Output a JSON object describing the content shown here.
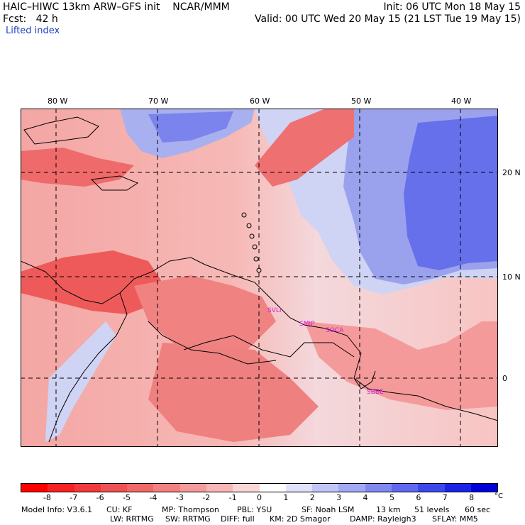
{
  "header": {
    "left_line1": "HAIC–HIWC 13km ARW–GFS init    NCAR/MMM",
    "left_line2": "Fcst:   42 h",
    "right_line1": "Init: 06 UTC Mon 18 May 15",
    "right_line2": "Valid: 00 UTC Wed 20 May 15 (21 LST Tue 19 May 15)",
    "field_name": "Lifted index"
  },
  "map": {
    "lon_labels": [
      "80 W",
      "70 W",
      "60 W",
      "50 W",
      "40 W"
    ],
    "lat_labels": [
      "20 N",
      "10 N",
      "0"
    ],
    "stations": [
      "SVLI",
      "SMJP",
      "SOCA",
      "SBBE"
    ],
    "colors": {
      "frame": "#000000",
      "negative_dark": "#ee4040",
      "negative_light": "#f7c0bc",
      "positive_light": "#c8cff5",
      "positive_dark": "#4040f0",
      "station": "#d020d0"
    }
  },
  "colorbar": {
    "tick_labels": [
      "-8",
      "-7",
      "-6",
      "-5",
      "-4",
      "-3",
      "-2",
      "-1",
      "0",
      "1",
      "2",
      "3",
      "4",
      "5",
      "6",
      "7",
      "8"
    ],
    "unit": "°C",
    "colors": [
      "#ff0000",
      "#f72222",
      "#f33a3a",
      "#ef5252",
      "#f06868",
      "#f38080",
      "#f59a9a",
      "#f8b6b6",
      "#fbd6d6",
      "#ffffff",
      "#e0e2fa",
      "#c2c6f6",
      "#a2a8f3",
      "#8088f1",
      "#6068ef",
      "#3c48ec",
      "#1a24e6",
      "#0000d8"
    ]
  },
  "footer": {
    "line1": {
      "model": "Model Info: V3.6.1",
      "cu": "CU: KF",
      "mp": "MP: Thompson",
      "pbl": "PBL: YSU",
      "sf": "SF: Noah LSM",
      "res": "13 km",
      "levels": "51 levels",
      "step": "60 sec"
    },
    "line2": {
      "lw": "LW: RRTMG",
      "sw": "SW: RRTMG",
      "diff": "DIFF: full",
      "km": "KM: 2D Smagor",
      "damp": "DAMP: Rayleigh3",
      "sflay": "SFLAY: MM5"
    }
  }
}
